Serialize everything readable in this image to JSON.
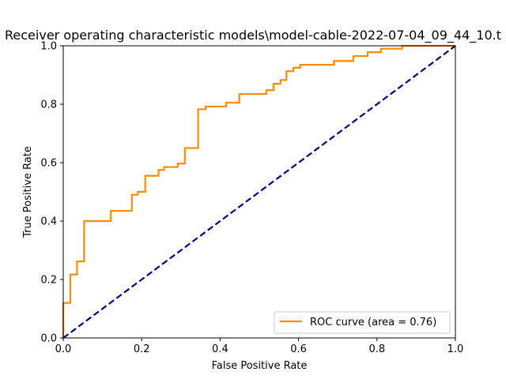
{
  "chart_data": {
    "type": "line",
    "title": "Receiver operating characteristic models\\model-cable-2022-07-04_09_44_10.t",
    "xlabel": "False Positive Rate",
    "ylabel": "True Positive Rate",
    "xlim": [
      0.0,
      1.0
    ],
    "ylim": [
      0.0,
      1.0
    ],
    "grid": false,
    "legend_position": "lower-right",
    "x_ticks": [
      "0.0",
      "0.2",
      "0.4",
      "0.6",
      "0.8",
      "1.0"
    ],
    "y_ticks": [
      "0.0",
      "0.2",
      "0.4",
      "0.6",
      "0.8",
      "1.0"
    ],
    "series": [
      {
        "name": "ROC curve (area = 0.76)",
        "color": "#ff8c00",
        "style": "solid",
        "x": [
          0.0,
          0.0,
          0.018,
          0.018,
          0.035,
          0.035,
          0.053,
          0.053,
          0.121,
          0.121,
          0.175,
          0.175,
          0.19,
          0.19,
          0.209,
          0.209,
          0.243,
          0.243,
          0.257,
          0.257,
          0.292,
          0.292,
          0.31,
          0.31,
          0.344,
          0.344,
          0.363,
          0.363,
          0.415,
          0.415,
          0.449,
          0.449,
          0.518,
          0.518,
          0.536,
          0.536,
          0.554,
          0.554,
          0.569,
          0.569,
          0.587,
          0.587,
          0.604,
          0.604,
          0.69,
          0.69,
          0.74,
          0.74,
          0.776,
          0.776,
          0.81,
          0.81,
          0.864,
          0.864,
          1.0
        ],
        "y": [
          0.0,
          0.12,
          0.12,
          0.217,
          0.217,
          0.262,
          0.262,
          0.4,
          0.4,
          0.435,
          0.435,
          0.49,
          0.49,
          0.5,
          0.5,
          0.555,
          0.555,
          0.575,
          0.575,
          0.585,
          0.585,
          0.597,
          0.597,
          0.65,
          0.65,
          0.783,
          0.783,
          0.792,
          0.792,
          0.805,
          0.805,
          0.835,
          0.835,
          0.848,
          0.848,
          0.87,
          0.87,
          0.883,
          0.883,
          0.913,
          0.913,
          0.925,
          0.925,
          0.935,
          0.935,
          0.948,
          0.948,
          0.965,
          0.965,
          0.978,
          0.978,
          0.99,
          0.99,
          1.0,
          1.0
        ]
      },
      {
        "name": "",
        "color": "#000080",
        "style": "dashed",
        "x": [
          0.0,
          1.0
        ],
        "y": [
          0.0,
          1.0
        ]
      }
    ]
  }
}
